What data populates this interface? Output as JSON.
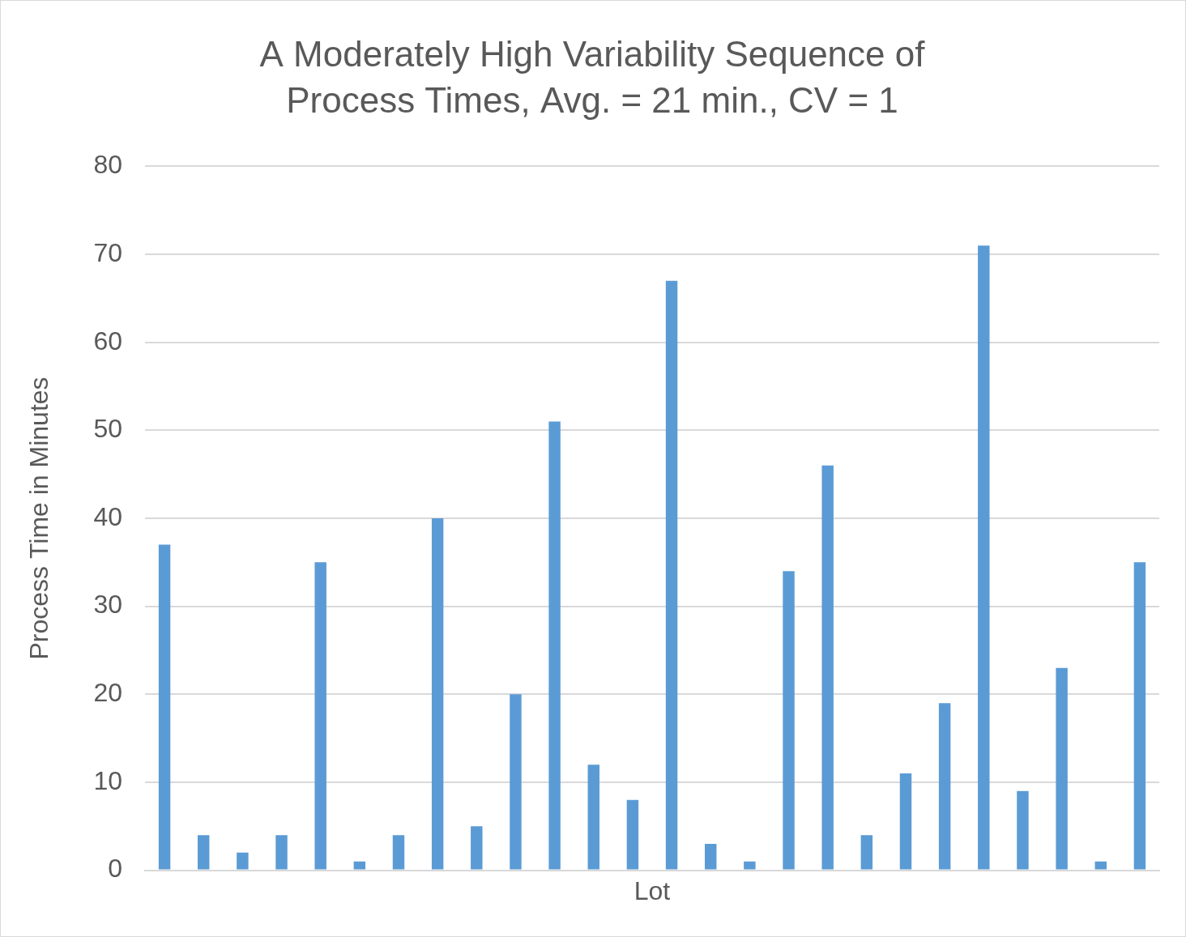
{
  "chart_data": {
    "type": "bar",
    "title": "A Moderately High Variability Sequence of\nProcess Times, Avg. = 21 min., CV = 1",
    "x_label": "Lot",
    "y_label": "Process Time in Minutes",
    "categories": [
      null,
      null,
      null,
      null,
      null,
      null,
      null,
      null,
      null,
      null,
      null,
      null,
      null,
      null,
      null,
      null,
      null,
      null,
      null,
      null,
      null,
      null,
      null,
      null,
      null,
      null
    ],
    "values": [
      37,
      4,
      2,
      4,
      35,
      1,
      4,
      40,
      5,
      20,
      51,
      12,
      8,
      67,
      3,
      1,
      34,
      46,
      4,
      11,
      19,
      71,
      9,
      23,
      1,
      35
    ],
    "color": "#5b9bd5",
    "ylim": [
      0,
      80
    ],
    "yticks": [
      0,
      10,
      20,
      30,
      40,
      50,
      60,
      70,
      80
    ],
    "grid": true,
    "tick_labels": "y",
    "data_labels": false
  }
}
